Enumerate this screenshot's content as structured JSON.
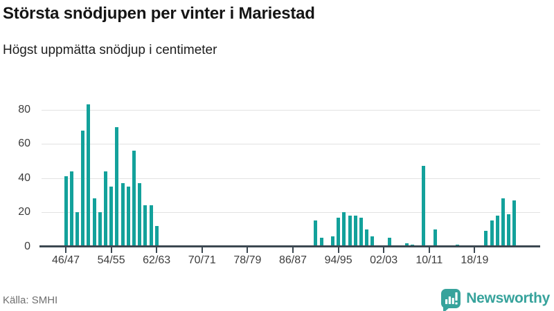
{
  "header": {
    "title": "Största snödjupen per vinter i Mariestad",
    "subtitle": "Högst uppmätta snödjup i centimeter"
  },
  "footer": {
    "source": "Källa: SMHI",
    "brand": "Newsworthy"
  },
  "colors": {
    "bar": "#13a19b",
    "axis": "#3b4750",
    "gridline": "#e2e2e2",
    "brand_teal": "#37a39c",
    "tick_text": "#3c3c3c",
    "source_text": "#6f6f6f"
  },
  "chart_data": {
    "type": "bar",
    "title": "Största snödjupen per vinter i Mariestad",
    "subtitle": "Högst uppmätta snödjup i centimeter",
    "xlabel": "",
    "ylabel": "snödjup i centimeter",
    "ylim": [
      0,
      85
    ],
    "yticks": [
      0,
      20,
      40,
      60,
      80
    ],
    "grid": "horizontal",
    "legend": "none",
    "xtick_labels": [
      "46/47",
      "54/55",
      "62/63",
      "70/71",
      "78/79",
      "86/87",
      "94/95",
      "02/03",
      "10/11",
      "18/19"
    ],
    "categories": [
      "46/47",
      "47/48",
      "48/49",
      "49/50",
      "50/51",
      "51/52",
      "52/53",
      "53/54",
      "54/55",
      "55/56",
      "56/57",
      "57/58",
      "58/59",
      "59/60",
      "60/61",
      "61/62",
      "62/63",
      "63/64",
      "64/65",
      "65/66",
      "66/67",
      "67/68",
      "68/69",
      "69/70",
      "70/71",
      "71/72",
      "72/73",
      "73/74",
      "74/75",
      "75/76",
      "76/77",
      "77/78",
      "78/79",
      "79/80",
      "80/81",
      "81/82",
      "82/83",
      "83/84",
      "84/85",
      "85/86",
      "86/87",
      "87/88",
      "88/89",
      "89/90",
      "90/91",
      "91/92",
      "92/93",
      "93/94",
      "94/95",
      "95/96",
      "96/97",
      "97/98",
      "98/99",
      "99/00",
      "00/01",
      "01/02",
      "02/03",
      "03/04",
      "04/05",
      "05/06",
      "06/07",
      "07/08",
      "08/09",
      "09/10",
      "10/11",
      "11/12",
      "12/13",
      "13/14",
      "14/15",
      "15/16",
      "16/17",
      "17/18",
      "18/19",
      "19/20",
      "20/21",
      "21/22",
      "22/23",
      "23/24",
      "24/25",
      "25/26"
    ],
    "values": [
      41,
      44,
      20,
      68,
      83,
      28,
      20,
      44,
      35,
      70,
      37,
      35,
      56,
      37,
      24,
      24,
      12,
      0,
      0,
      0,
      0,
      0,
      0,
      0,
      0,
      0,
      0,
      0,
      0,
      0,
      0,
      0,
      0,
      0,
      0,
      0,
      0,
      0,
      0,
      0,
      0,
      0,
      0,
      0,
      15,
      5,
      0,
      6,
      17,
      20,
      18,
      18,
      17,
      10,
      6,
      0,
      0,
      5,
      0,
      0,
      2,
      1,
      0,
      47,
      0,
      10,
      0,
      0,
      0,
      1,
      0,
      0,
      0,
      0,
      9,
      15,
      18,
      28,
      19,
      27
    ]
  }
}
